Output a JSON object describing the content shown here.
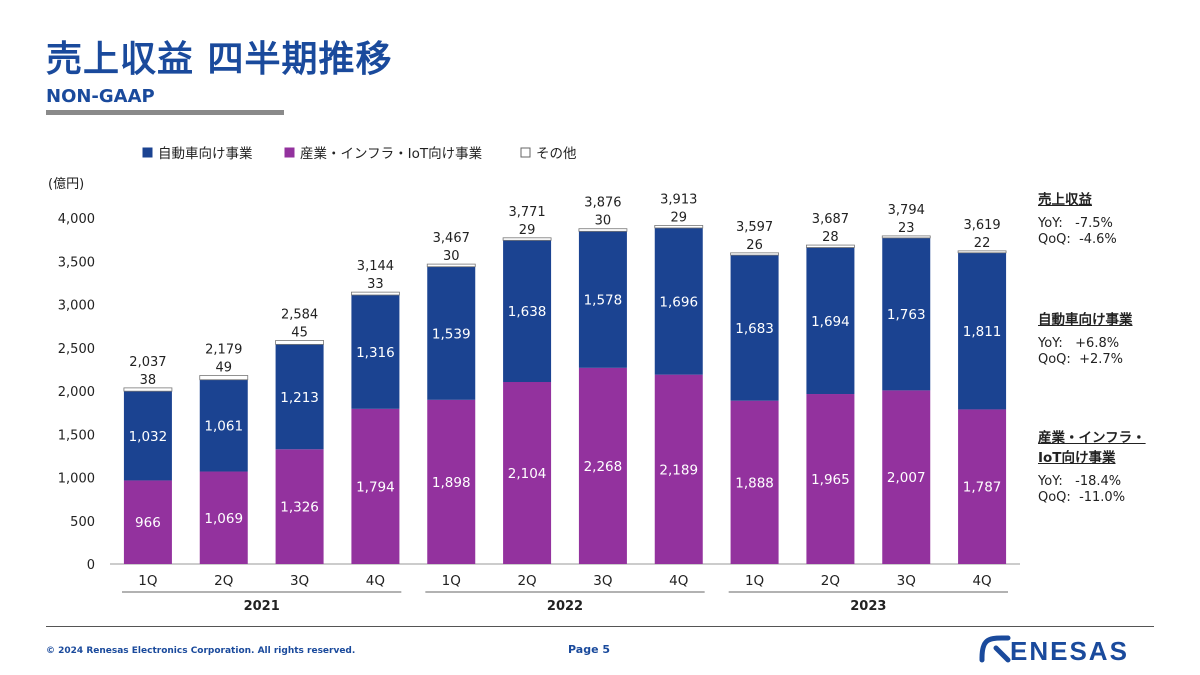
{
  "page": {
    "title": "売上収益 四半期推移",
    "subtitle": "NON-GAAP",
    "copyright": "© 2024 Renesas Electronics Corporation. All rights reserved.",
    "page_label": "Page 5",
    "logo_text": "RENESAS"
  },
  "colors": {
    "automotive": "#1b4391",
    "industrial": "#93329e",
    "other": "#ffffff",
    "brand": "#1a4a9c"
  },
  "chart_data": {
    "type": "bar",
    "stacked": true,
    "unit_label": "(億円)",
    "ylim": [
      0,
      4000
    ],
    "yticks": [
      0,
      500,
      1000,
      1500,
      2000,
      2500,
      3000,
      3500,
      4000
    ],
    "ytick_labels": [
      "0",
      "500",
      "1,000",
      "1,500",
      "2,000",
      "2,500",
      "3,000",
      "3,500",
      "4,000"
    ],
    "categories": [
      "1Q",
      "2Q",
      "3Q",
      "4Q",
      "1Q",
      "2Q",
      "3Q",
      "4Q",
      "1Q",
      "2Q",
      "3Q",
      "4Q"
    ],
    "years": [
      {
        "label": "2021",
        "start": 0,
        "end": 3
      },
      {
        "label": "2022",
        "start": 4,
        "end": 7
      },
      {
        "label": "2023",
        "start": 8,
        "end": 11
      }
    ],
    "series": [
      {
        "name": "産業・インフラ・IoT向け事業",
        "key": "industrial",
        "values": [
          966,
          1069,
          1326,
          1794,
          1898,
          2104,
          2268,
          2189,
          1888,
          1965,
          2007,
          1787
        ],
        "labels": [
          "966",
          "1,069",
          "1,326",
          "1,794",
          "1,898",
          "2,104",
          "2,268",
          "2,189",
          "1,888",
          "1,965",
          "2,007",
          "1,787"
        ]
      },
      {
        "name": "自動車向け事業",
        "key": "automotive",
        "values": [
          1032,
          1061,
          1213,
          1316,
          1539,
          1638,
          1578,
          1696,
          1683,
          1694,
          1763,
          1811
        ],
        "labels": [
          "1,032",
          "1,061",
          "1,213",
          "1,316",
          "1,539",
          "1,638",
          "1,578",
          "1,696",
          "1,683",
          "1,694",
          "1,763",
          "1,811"
        ]
      },
      {
        "name": "その他",
        "key": "other",
        "values": [
          38,
          49,
          45,
          33,
          30,
          29,
          30,
          29,
          26,
          28,
          23,
          22
        ],
        "labels": [
          "38",
          "49",
          "45",
          "33",
          "30",
          "29",
          "30",
          "29",
          "26",
          "28",
          "23",
          "22"
        ]
      }
    ],
    "legend": [
      {
        "name": "自動車向け事業",
        "key": "automotive"
      },
      {
        "name": "産業・インフラ・IoT向け事業",
        "key": "industrial"
      },
      {
        "name": "その他",
        "key": "other"
      }
    ],
    "totals": [
      2037,
      2179,
      2584,
      3144,
      3467,
      3771,
      3876,
      3913,
      3597,
      3687,
      3794,
      3619
    ],
    "total_labels": [
      "2,037",
      "2,179",
      "2,584",
      "3,144",
      "3,467",
      "3,771",
      "3,876",
      "3,913",
      "3,597",
      "3,687",
      "3,794",
      "3,619"
    ],
    "legend_position": "top"
  },
  "side_panel": [
    {
      "heading": "売上収益",
      "heading_line2": "",
      "yoy": "YoY:   -7.5%",
      "qoq": "QoQ:  -4.6%"
    },
    {
      "heading": "自動車向け事業",
      "heading_line2": "",
      "yoy": "YoY:   +6.8%",
      "qoq": "QoQ:  +2.7%"
    },
    {
      "heading": "産業・インフラ・",
      "heading_line2": "IoT向け事業",
      "yoy": "YoY:   -18.4%",
      "qoq": "QoQ:  -11.0%"
    }
  ]
}
